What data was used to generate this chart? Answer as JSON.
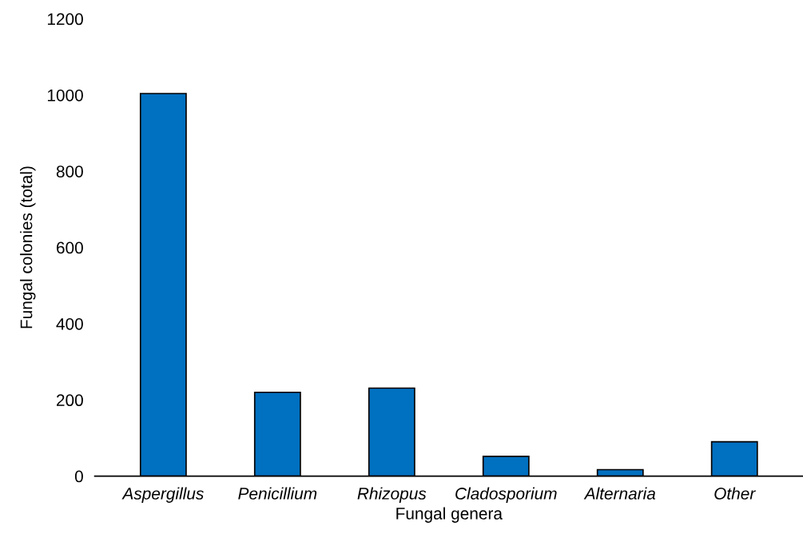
{
  "chart_data": {
    "type": "bar",
    "xlabel": "Fungal genera",
    "ylabel": "Fungal colonies (total)",
    "categories": [
      "Aspergillus",
      "Penicillium",
      "Rhizopus",
      "Cladosporium",
      "Alternaria",
      "Other"
    ],
    "values": [
      1004,
      220,
      231,
      52,
      17,
      90
    ],
    "color": "#0070c0",
    "ylim": [
      0,
      1200
    ],
    "yticks": [
      0,
      200,
      400,
      600,
      800,
      1000,
      1200
    ],
    "grid": false,
    "legend": false
  }
}
